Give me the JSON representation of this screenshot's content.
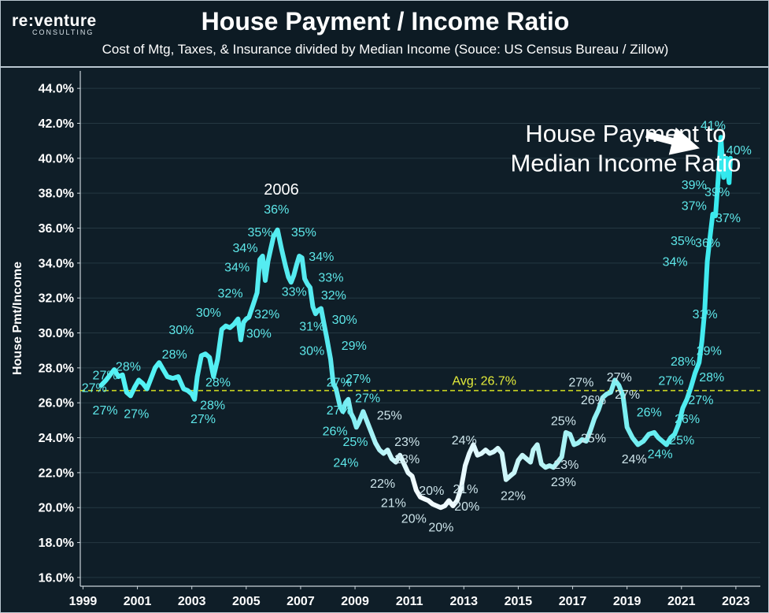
{
  "header": {
    "logo_main": "re:venture",
    "logo_sub": "CONSULTING",
    "title": "House Payment / Income Ratio",
    "subtitle": "Cost of Mtg, Taxes, & Insurance divided by Median Income (Souce: US Census Bureau / Zillow)"
  },
  "colors": {
    "background": "#0f1e28",
    "line_start": "#4ef2f5",
    "line_low": "#f1fbff",
    "avg_line": "#c9d420",
    "label_teal": "#5ee8ea",
    "label_light": "#cde4ea",
    "grid": "#253842"
  },
  "chart_data": {
    "type": "line",
    "title": "House Payment / Income Ratio",
    "ylabel": "House Pmt/Income",
    "ylim": [
      15.5,
      45.0
    ],
    "xlim": [
      1998.9,
      2023.9
    ],
    "grid": true,
    "yticks": [
      16,
      18,
      20,
      22,
      24,
      26,
      28,
      30,
      32,
      34,
      36,
      38,
      40,
      42,
      44
    ],
    "ytick_labels": [
      "16.0%",
      "18.0%",
      "20.0%",
      "22.0%",
      "24.0%",
      "26.0%",
      "28.0%",
      "30.0%",
      "32.0%",
      "34.0%",
      "36.0%",
      "38.0%",
      "40.0%",
      "42.0%",
      "44.0%"
    ],
    "xticks": [
      1999,
      2001,
      2003,
      2005,
      2007,
      2009,
      2011,
      2013,
      2015,
      2017,
      2019,
      2021,
      2023
    ],
    "xtick_labels": [
      "1999",
      "2001",
      "2003",
      "2005",
      "2007",
      "2009",
      "2011",
      "2013",
      "2015",
      "2017",
      "2019",
      "2021",
      "2023"
    ],
    "average": {
      "value": 26.7,
      "label": "Avg: 26.7%"
    },
    "series": [
      {
        "x": [
          1999.67,
          1999.85,
          2000.0,
          2000.15,
          2000.3,
          2000.45,
          2000.6,
          2000.75,
          2000.9,
          2001.05,
          2001.2,
          2001.35,
          2001.5,
          2001.65,
          2001.8,
          2001.95,
          2002.1,
          2002.3,
          2002.5,
          2002.7,
          2002.85,
          2003.0,
          2003.1,
          2003.2,
          2003.35,
          2003.5,
          2003.65,
          2003.8,
          2003.95,
          2004.1,
          2004.25,
          2004.4,
          2004.55,
          2004.7,
          2004.8,
          2004.9,
          2005.0,
          2005.1,
          2005.25,
          2005.4,
          2005.5,
          2005.6,
          2005.7,
          2005.8,
          2005.9,
          2006.0,
          2006.15,
          2006.3,
          2006.45,
          2006.55,
          2006.65,
          2006.75,
          2006.85,
          2006.95,
          2007.05,
          2007.15,
          2007.25,
          2007.35,
          2007.45,
          2007.55,
          2007.65,
          2007.75,
          2007.85,
          2007.95,
          2008.1,
          2008.2,
          2008.3,
          2008.45,
          2008.55,
          2008.65,
          2008.75,
          2008.85,
          2008.95,
          2009.05,
          2009.15,
          2009.3,
          2009.45,
          2009.6,
          2009.75,
          2009.9,
          2010.05,
          2010.2,
          2010.35,
          2010.5,
          2010.65,
          2010.8,
          2010.95,
          2011.1,
          2011.25,
          2011.4,
          2011.55,
          2011.7,
          2011.85,
          2012.0,
          2012.15,
          2012.3,
          2012.45,
          2012.6,
          2012.75,
          2012.9,
          2013.05,
          2013.2,
          2013.35,
          2013.5,
          2013.65,
          2013.8,
          2013.95,
          2014.1,
          2014.25,
          2014.4,
          2014.55,
          2014.7,
          2014.85,
          2015.0,
          2015.15,
          2015.3,
          2015.45,
          2015.55,
          2015.7,
          2015.85,
          2016.0,
          2016.15,
          2016.3,
          2016.45,
          2016.6,
          2016.75,
          2016.9,
          2017.05,
          2017.2,
          2017.35,
          2017.5,
          2017.65,
          2017.8,
          2017.95,
          2018.1,
          2018.25,
          2018.4,
          2018.55,
          2018.7,
          2018.85,
          2019.0,
          2019.2,
          2019.4,
          2019.6,
          2019.8,
          2020.0,
          2020.15,
          2020.3,
          2020.45,
          2020.6,
          2020.75,
          2020.9,
          2021.05,
          2021.2,
          2021.35,
          2021.5,
          2021.65,
          2021.75,
          2021.85,
          2021.95,
          2022.05,
          2022.15,
          2022.25,
          2022.35,
          2022.45,
          2022.55,
          2022.65,
          2022.75,
          2022.8
        ],
        "values": [
          27.0,
          27.3,
          27.6,
          27.9,
          27.5,
          27.6,
          26.6,
          26.4,
          26.9,
          27.3,
          27.1,
          26.8,
          27.4,
          28.0,
          28.3,
          27.9,
          27.5,
          27.4,
          27.5,
          26.8,
          26.7,
          26.5,
          26.2,
          27.5,
          28.7,
          28.8,
          28.6,
          27.5,
          28.5,
          30.2,
          30.4,
          30.3,
          30.5,
          30.8,
          29.6,
          30.6,
          30.8,
          30.9,
          31.6,
          32.3,
          34.2,
          34.4,
          33.0,
          34.1,
          34.8,
          35.5,
          35.9,
          34.8,
          33.8,
          33.2,
          32.9,
          33.3,
          33.9,
          34.4,
          34.3,
          33.1,
          32.8,
          32.6,
          31.5,
          31.1,
          31.3,
          31.4,
          30.6,
          29.8,
          28.5,
          27.1,
          26.8,
          25.8,
          25.5,
          26.0,
          26.2,
          25.4,
          25.1,
          24.6,
          24.9,
          25.5,
          24.9,
          24.3,
          23.7,
          23.3,
          23.1,
          23.3,
          22.8,
          22.6,
          23.0,
          22.5,
          22.0,
          21.8,
          21.0,
          20.6,
          20.5,
          20.4,
          20.2,
          20.1,
          20.0,
          20.1,
          20.4,
          20.1,
          20.4,
          21.1,
          22.4,
          23.1,
          23.6,
          23.0,
          23.1,
          23.3,
          23.1,
          23.2,
          23.4,
          23.1,
          21.6,
          21.8,
          22.0,
          22.7,
          23.0,
          22.8,
          22.6,
          23.3,
          23.6,
          22.5,
          22.3,
          22.4,
          22.3,
          22.6,
          22.9,
          24.3,
          24.2,
          23.6,
          23.7,
          23.9,
          23.8,
          24.4,
          25.1,
          25.6,
          26.3,
          26.5,
          26.6,
          27.3,
          27.0,
          26.4,
          24.6,
          24.0,
          23.6,
          23.8,
          24.2,
          24.3,
          24.0,
          23.8,
          23.6,
          24.0,
          24.2,
          24.8,
          25.7,
          26.2,
          26.9,
          27.7,
          28.3,
          29.5,
          31.2,
          34.1,
          35.5,
          36.8,
          36.7,
          38.8,
          41.2,
          38.9,
          40.0,
          38.6,
          40.0
        ]
      }
    ],
    "data_labels": [
      {
        "x": 1998.95,
        "y": 26.9,
        "text": "27%"
      },
      {
        "x": 1999.35,
        "y": 27.6,
        "text": "27%"
      },
      {
        "x": 1999.35,
        "y": 25.6,
        "text": "27%"
      },
      {
        "x": 2000.2,
        "y": 28.1,
        "text": "28%"
      },
      {
        "x": 2000.5,
        "y": 25.4,
        "text": "27%"
      },
      {
        "x": 2001.9,
        "y": 28.8,
        "text": "28%"
      },
      {
        "x": 2002.95,
        "y": 25.1,
        "text": "27%"
      },
      {
        "x": 2002.15,
        "y": 30.2,
        "text": "30%"
      },
      {
        "x": 2003.15,
        "y": 31.2,
        "text": "30%"
      },
      {
        "x": 2003.5,
        "y": 27.2,
        "text": "28%"
      },
      {
        "x": 2003.3,
        "y": 25.9,
        "text": "28%"
      },
      {
        "x": 2003.95,
        "y": 32.3,
        "text": "32%"
      },
      {
        "x": 2004.2,
        "y": 33.8,
        "text": "34%"
      },
      {
        "x": 2004.5,
        "y": 34.9,
        "text": "34%"
      },
      {
        "x": 2005.05,
        "y": 35.8,
        "text": "35%"
      },
      {
        "x": 2005.65,
        "y": 37.1,
        "text": "36%"
      },
      {
        "x": 2005.65,
        "y": 38.2,
        "text": "2006"
      },
      {
        "x": 2005.3,
        "y": 31.1,
        "text": "32%"
      },
      {
        "x": 2005.0,
        "y": 30.0,
        "text": "30%"
      },
      {
        "x": 2006.3,
        "y": 32.4,
        "text": "33%"
      },
      {
        "x": 2006.65,
        "y": 35.8,
        "text": "35%"
      },
      {
        "x": 2007.3,
        "y": 34.4,
        "text": "34%"
      },
      {
        "x": 2007.65,
        "y": 33.2,
        "text": "33%"
      },
      {
        "x": 2007.75,
        "y": 32.2,
        "text": "32%"
      },
      {
        "x": 2006.95,
        "y": 30.4,
        "text": "31%"
      },
      {
        "x": 2006.95,
        "y": 29.0,
        "text": "30%"
      },
      {
        "x": 2008.15,
        "y": 30.8,
        "text": "30%"
      },
      {
        "x": 2008.5,
        "y": 29.3,
        "text": "29%"
      },
      {
        "x": 2007.95,
        "y": 27.2,
        "text": "27%"
      },
      {
        "x": 2008.65,
        "y": 27.4,
        "text": "27%"
      },
      {
        "x": 2009.0,
        "y": 26.3,
        "text": "27%"
      },
      {
        "x": 2007.95,
        "y": 25.6,
        "text": "27%"
      },
      {
        "x": 2007.8,
        "y": 24.4,
        "text": "26%"
      },
      {
        "x": 2009.8,
        "y": 25.3,
        "text": "25%"
      },
      {
        "x": 2008.55,
        "y": 23.8,
        "text": "25%"
      },
      {
        "x": 2008.2,
        "y": 22.6,
        "text": "24%"
      },
      {
        "x": 2010.45,
        "y": 23.8,
        "text": "23%"
      },
      {
        "x": 2010.45,
        "y": 22.8,
        "text": "23%"
      },
      {
        "x": 2009.55,
        "y": 21.4,
        "text": "22%"
      },
      {
        "x": 2009.95,
        "y": 20.3,
        "text": "21%"
      },
      {
        "x": 2010.7,
        "y": 19.4,
        "text": "20%"
      },
      {
        "x": 2011.35,
        "y": 21.0,
        "text": "20%"
      },
      {
        "x": 2011.7,
        "y": 18.9,
        "text": "20%"
      },
      {
        "x": 2012.55,
        "y": 23.9,
        "text": "24%"
      },
      {
        "x": 2012.6,
        "y": 21.1,
        "text": "21%"
      },
      {
        "x": 2012.65,
        "y": 20.1,
        "text": "20%"
      },
      {
        "x": 2014.35,
        "y": 20.7,
        "text": "22%"
      },
      {
        "x": 2016.2,
        "y": 25.0,
        "text": "25%"
      },
      {
        "x": 2016.3,
        "y": 22.5,
        "text": "23%"
      },
      {
        "x": 2016.2,
        "y": 21.5,
        "text": "23%"
      },
      {
        "x": 2016.85,
        "y": 27.2,
        "text": "27%"
      },
      {
        "x": 2017.3,
        "y": 26.2,
        "text": "26%"
      },
      {
        "x": 2017.3,
        "y": 24.0,
        "text": "25%"
      },
      {
        "x": 2018.25,
        "y": 27.5,
        "text": "27%"
      },
      {
        "x": 2018.55,
        "y": 26.5,
        "text": "27%"
      },
      {
        "x": 2019.35,
        "y": 25.5,
        "text": "26%"
      },
      {
        "x": 2018.8,
        "y": 22.8,
        "text": "24%"
      },
      {
        "x": 2019.75,
        "y": 23.1,
        "text": "24%"
      },
      {
        "x": 2020.6,
        "y": 28.4,
        "text": "28%"
      },
      {
        "x": 2020.15,
        "y": 27.3,
        "text": "27%"
      },
      {
        "x": 2021.65,
        "y": 27.5,
        "text": "28%"
      },
      {
        "x": 2021.55,
        "y": 29.0,
        "text": "29%"
      },
      {
        "x": 2021.25,
        "y": 26.2,
        "text": "27%"
      },
      {
        "x": 2020.75,
        "y": 25.1,
        "text": "26%"
      },
      {
        "x": 2020.55,
        "y": 23.9,
        "text": "25%"
      },
      {
        "x": 2021.4,
        "y": 31.1,
        "text": "31%"
      },
      {
        "x": 2020.3,
        "y": 34.1,
        "text": "34%"
      },
      {
        "x": 2020.6,
        "y": 35.3,
        "text": "35%"
      },
      {
        "x": 2021.5,
        "y": 35.2,
        "text": "36%"
      },
      {
        "x": 2021.0,
        "y": 37.3,
        "text": "37%"
      },
      {
        "x": 2022.25,
        "y": 36.6,
        "text": "37%"
      },
      {
        "x": 2021.0,
        "y": 38.5,
        "text": "39%"
      },
      {
        "x": 2021.85,
        "y": 38.1,
        "text": "39%"
      },
      {
        "x": 2021.7,
        "y": 41.9,
        "text": "41%"
      },
      {
        "x": 2022.65,
        "y": 40.5,
        "text": "40%"
      }
    ],
    "annotations": [
      {
        "x": 2018.95,
        "y": 41.4,
        "text": "House Payment to",
        "arrow_to": {
          "x": 2021.5,
          "y": 41.0
        }
      },
      {
        "x": 2018.95,
        "y": 39.7,
        "text": "Median Income Ratio"
      }
    ]
  }
}
